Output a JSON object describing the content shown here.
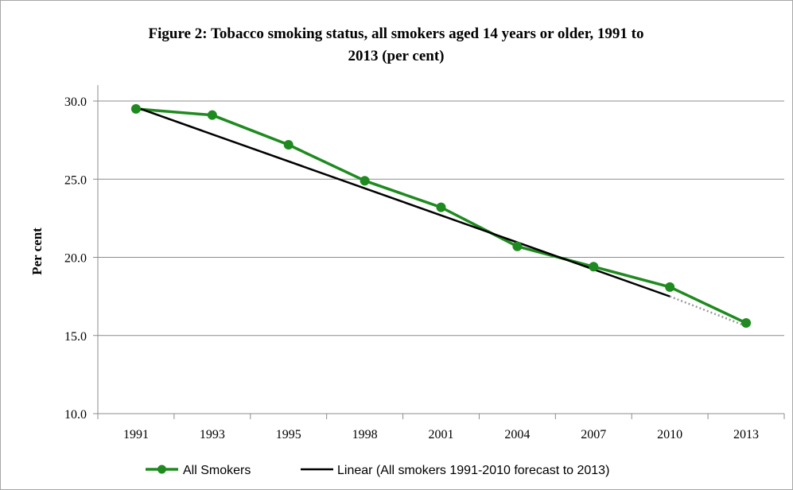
{
  "chart_data": {
    "type": "line",
    "title_lines": [
      "Figure 2: Tobacco smoking status, all smokers aged 14 years or older, 1991 to",
      "2013 (per cent)"
    ],
    "xlabel": "",
    "ylabel": "Per cent",
    "categories": [
      "1991",
      "1993",
      "1995",
      "1998",
      "2001",
      "2004",
      "2007",
      "2010",
      "2013"
    ],
    "ylim": [
      10.0,
      30.0
    ],
    "yticks": [
      "10.0",
      "15.0",
      "20.0",
      "25.0",
      "30.0"
    ],
    "grid": true,
    "legend_position": "bottom",
    "series": [
      {
        "name": "All Smokers",
        "color": "#1f8a1f",
        "marker": "circle",
        "values": [
          29.5,
          29.1,
          27.2,
          24.9,
          23.2,
          20.7,
          19.4,
          18.1,
          15.8
        ]
      },
      {
        "name": "Linear (All smokers 1991-2010 forecast to 2013)",
        "color": "#000000",
        "style": "trendline",
        "start": {
          "x": "1991",
          "y": 29.6
        },
        "end": {
          "x": "2010",
          "y": 17.5
        },
        "forecast": {
          "x": "2013",
          "y": 15.6,
          "color": "#999999",
          "dash": "dotted"
        }
      }
    ]
  }
}
